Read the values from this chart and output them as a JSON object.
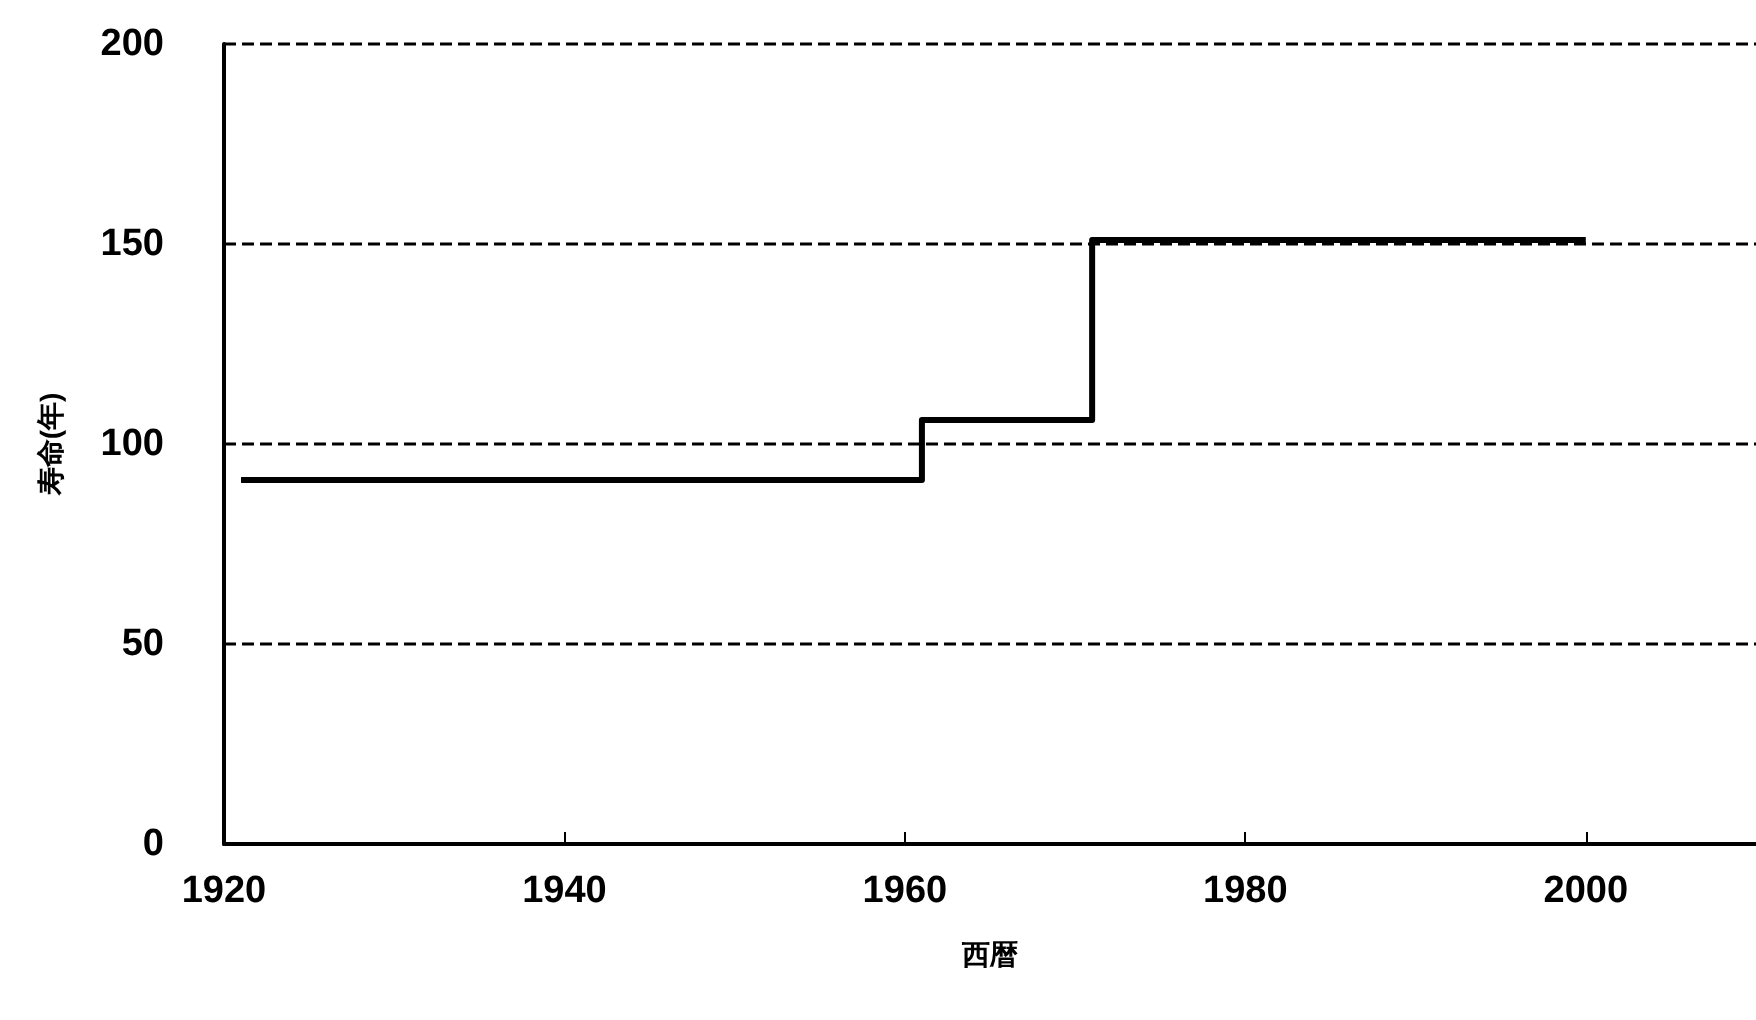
{
  "chart_data": {
    "type": "step",
    "xlabel": "西暦",
    "ylabel": "寿命(年)",
    "x": [
      1921,
      1961,
      1971,
      2000
    ],
    "series": [
      {
        "color": "#000000",
        "values": [
          91,
          106,
          151,
          151
        ]
      }
    ],
    "xlim": [
      1920,
      2010
    ],
    "xticks": [
      1920,
      1940,
      1960,
      1980,
      2000
    ],
    "ylim": [
      0,
      200
    ],
    "yticks": [
      0,
      50,
      100,
      150,
      200
    ],
    "grid": "y",
    "marker": "none",
    "line_style": "solid"
  }
}
